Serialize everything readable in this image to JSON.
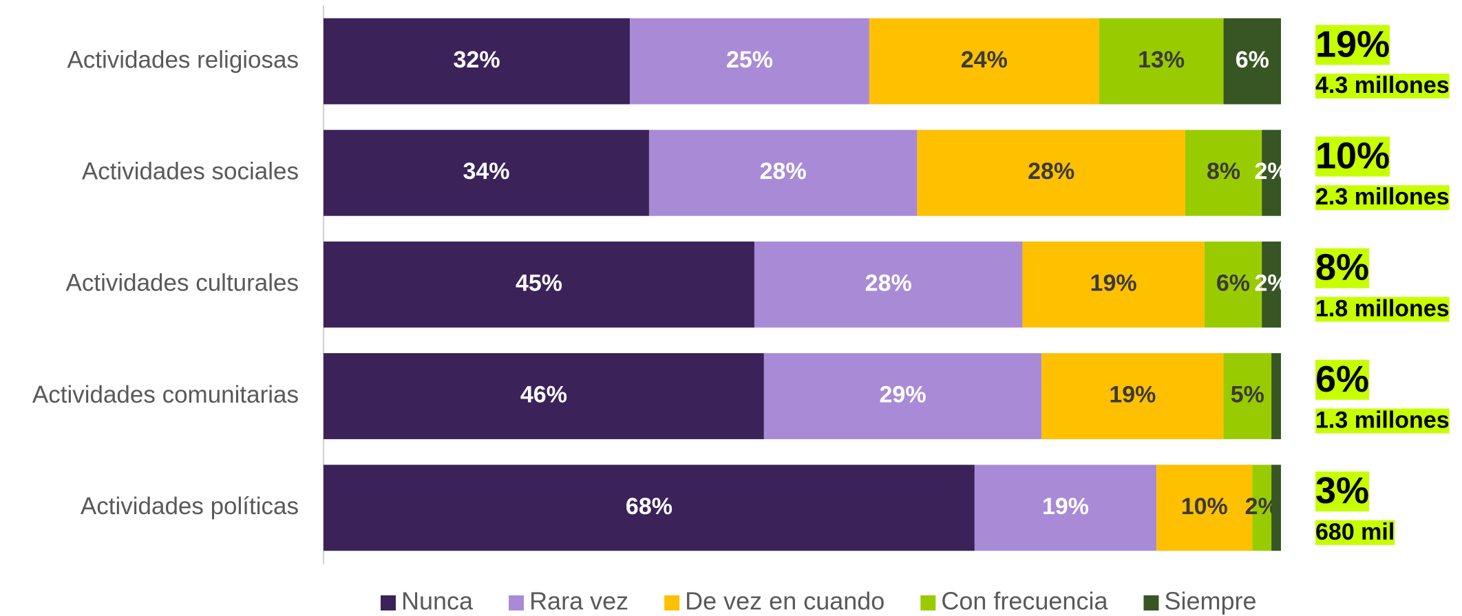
{
  "chart_data": {
    "type": "stacked_bar_horizontal",
    "categories": [
      "Actividades religiosas",
      "Actividades sociales",
      "Actividades culturales",
      "Actividades comunitarias",
      "Actividades políticas"
    ],
    "xlim": [
      0,
      100
    ],
    "series": [
      {
        "name": "Nunca",
        "color": "#3b2259",
        "values": [
          32,
          34,
          45,
          46,
          68
        ],
        "value_labels": [
          "32%",
          "34%",
          "45%",
          "46%",
          "68%"
        ]
      },
      {
        "name": "Rara vez",
        "color": "#a98ad6",
        "values": [
          25,
          28,
          28,
          29,
          19
        ],
        "value_labels": [
          "25%",
          "28%",
          "28%",
          "29%",
          "19%"
        ]
      },
      {
        "name": "De vez en cuando",
        "color": "#ffc000",
        "values": [
          24,
          28,
          19,
          19,
          10
        ],
        "value_labels": [
          "24%",
          "28%",
          "19%",
          "19%",
          "10%"
        ]
      },
      {
        "name": "Con frecuencia",
        "color": "#99cc00",
        "values": [
          13,
          8,
          6,
          5,
          2
        ],
        "value_labels": [
          "13%",
          "8%",
          "6%",
          "5%",
          "2%"
        ]
      },
      {
        "name": "Siempre",
        "color": "#375623",
        "values": [
          6,
          2,
          2,
          1,
          1
        ],
        "value_labels": [
          "6%",
          "2%",
          "2%",
          null,
          null
        ]
      }
    ],
    "annotations": [
      {
        "percent": "19%",
        "label": "4.3 millones"
      },
      {
        "percent": "10%",
        "label": "2.3 millones"
      },
      {
        "percent": "8%",
        "label": "1.8 millones"
      },
      {
        "percent": "6%",
        "label": "1.3 millones"
      },
      {
        "percent": "3%",
        "label": "680 mil"
      }
    ],
    "legend": "bottom"
  }
}
